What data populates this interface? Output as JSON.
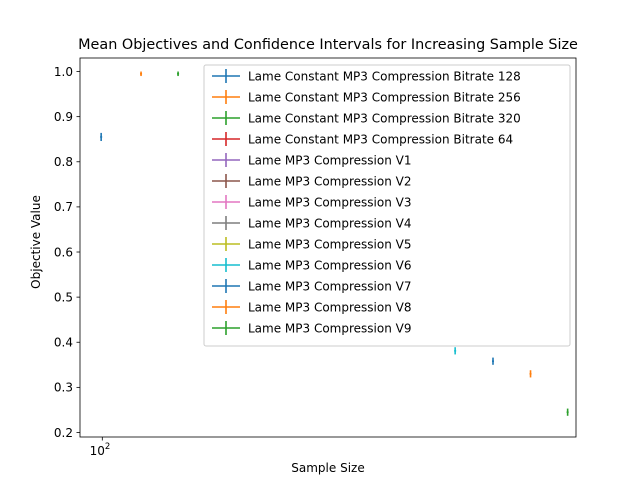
{
  "chart_data": {
    "type": "scatter",
    "title": "Mean Objectives and Confidence Intervals for Increasing Sample Size",
    "xlabel": "Sample Size",
    "ylabel": "Objective Value",
    "xscale": "log",
    "xtick": {
      "base": "10",
      "exponent": "2",
      "value": 100
    },
    "xlim": [
      96,
      250
    ],
    "ylim": [
      0.19,
      1.03
    ],
    "yticks": [
      "0.2",
      "0.3",
      "0.4",
      "0.5",
      "0.6",
      "0.7",
      "0.8",
      "0.9",
      "1.0"
    ],
    "grid": false,
    "legend_position": "upper-right",
    "series": [
      {
        "name": "Lame Constant MP3 Compression Bitrate 128",
        "color": "#1f77b4",
        "points": [
          {
            "x": 100,
            "y": 0.855,
            "lo": 0.846,
            "hi": 0.864
          }
        ]
      },
      {
        "name": "Lame Constant MP3 Compression Bitrate 256",
        "color": "#ff7f0e",
        "points": [
          {
            "x": 108,
            "y": 0.995,
            "lo": 0.99,
            "hi": 1.0
          }
        ]
      },
      {
        "name": "Lame Constant MP3 Compression Bitrate 320",
        "color": "#2ca02c",
        "points": [
          {
            "x": 116,
            "y": 0.995,
            "lo": 0.99,
            "hi": 1.0
          }
        ]
      },
      {
        "name": "Lame Constant MP3 Compression Bitrate 64",
        "color": "#d62728",
        "points": []
      },
      {
        "name": "Lame MP3 Compression V1",
        "color": "#9467bd",
        "points": []
      },
      {
        "name": "Lame MP3 Compression V2",
        "color": "#8c564b",
        "points": []
      },
      {
        "name": "Lame MP3 Compression V3",
        "color": "#e377c2",
        "points": []
      },
      {
        "name": "Lame MP3 Compression V4",
        "color": "#7f7f7f",
        "points": []
      },
      {
        "name": "Lame MP3 Compression V5",
        "color": "#bcbd22",
        "points": []
      },
      {
        "name": "Lame MP3 Compression V6",
        "color": "#17becf",
        "points": [
          {
            "x": 198,
            "y": 0.381,
            "lo": 0.373,
            "hi": 0.389
          }
        ]
      },
      {
        "name": "Lame MP3 Compression V7",
        "color": "#1f77b4",
        "points": [
          {
            "x": 213,
            "y": 0.358,
            "lo": 0.35,
            "hi": 0.366
          }
        ]
      },
      {
        "name": "Lame MP3 Compression V8",
        "color": "#ff7f0e",
        "points": [
          {
            "x": 229,
            "y": 0.33,
            "lo": 0.322,
            "hi": 0.338
          }
        ]
      },
      {
        "name": "Lame MP3 Compression V9",
        "color": "#2ca02c",
        "points": [
          {
            "x": 246,
            "y": 0.245,
            "lo": 0.237,
            "hi": 0.253
          }
        ]
      }
    ]
  }
}
